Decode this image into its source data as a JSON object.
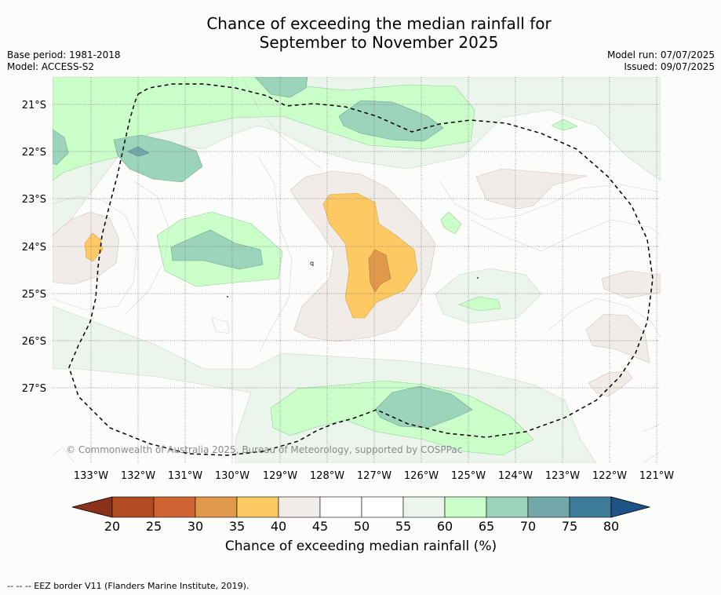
{
  "header": {
    "title_line1": "Chance of exceeding the median rainfall for",
    "title_line2": "September to November 2025",
    "base_period": "Base period: 1981-2018",
    "model": "Model: ACCESS-S2",
    "model_run": "Model run: 07/07/2025",
    "issued": "Issued: 09/07/2025"
  },
  "map": {
    "lat_labels": [
      "21°S",
      "22°S",
      "23°S",
      "24°S",
      "25°S",
      "26°S",
      "27°S"
    ],
    "lon_labels": [
      "133°W",
      "132°W",
      "131°W",
      "130°W",
      "129°W",
      "128°W",
      "127°W",
      "126°W",
      "125°W",
      "124°W",
      "123°W",
      "122°W",
      "121°W"
    ],
    "copyright": "© Commonwealth of Australia 2025, Bureau of Meteorology, supported by COSPPac"
  },
  "colorbar": {
    "title": "Chance of exceeding median rainfall (%)",
    "ticks": [
      "20",
      "25",
      "30",
      "35",
      "40",
      "45",
      "50",
      "55",
      "60",
      "65",
      "70",
      "75",
      "80"
    ],
    "colors": [
      "#b24a23",
      "#cf6432",
      "#e0984a",
      "#fdc962",
      "#f1ece7",
      "#ffffff",
      "#ffffff",
      "#ebf5eb",
      "#caffca",
      "#9cd3bb",
      "#73a8ab",
      "#3e7b99"
    ],
    "low_extend_color": "#8c3119",
    "high_extend_color": "#1e5485"
  },
  "legend": {
    "eez_label": "--  --  -- EEZ border V11 (Flanders Marine Institute, 2019)."
  }
}
